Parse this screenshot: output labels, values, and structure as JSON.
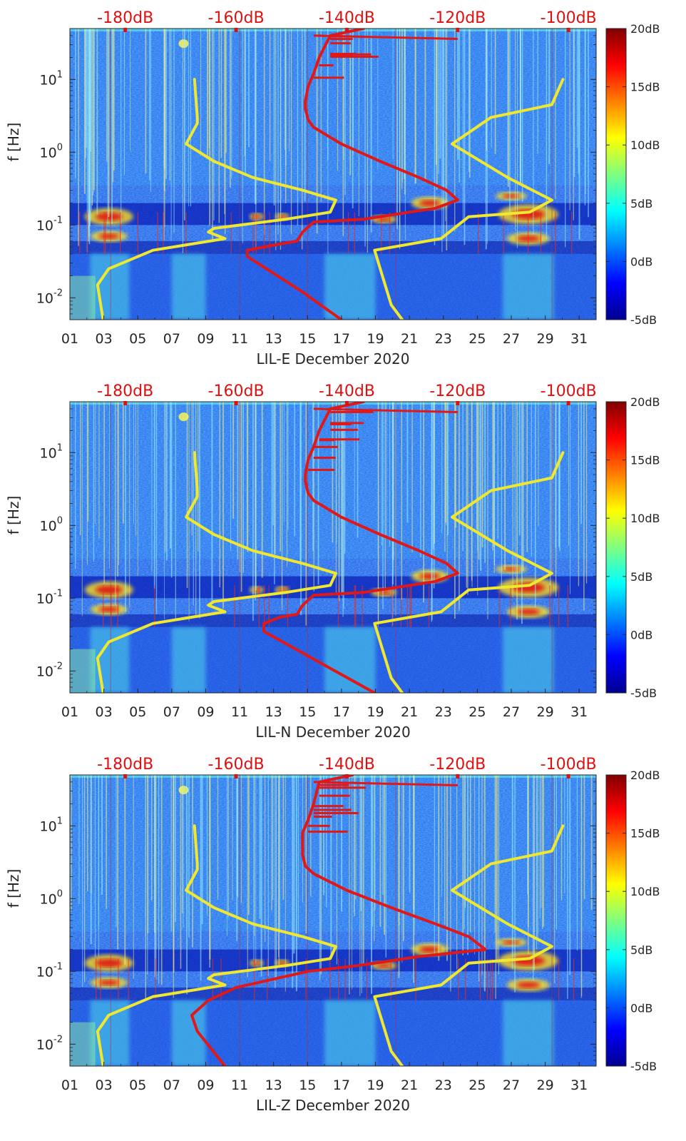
{
  "chart_data": [
    {
      "type": "heatmap",
      "xlabel": "LIL-E December 2020",
      "ylabel": "f [Hz]",
      "xticks": [
        "01",
        "03",
        "05",
        "07",
        "09",
        "11",
        "13",
        "15",
        "17",
        "19",
        "21",
        "23",
        "25",
        "27",
        "29",
        "31"
      ],
      "x_range_days": [
        1,
        32
      ],
      "yscale": "log",
      "ylim_hz": [
        0.005,
        50
      ],
      "yticks": [
        "10-2",
        "100",
        "10-1",
        "101"
      ],
      "top_axis_ticks": [
        "-180dB",
        "-160dB",
        "-140dB",
        "-120dB",
        "-100dB"
      ],
      "top_axis_values_db": [
        -180,
        -160,
        -140,
        -120,
        -100
      ],
      "colorbar": {
        "ticks": [
          "20dB",
          "15dB",
          "10dB",
          "5dB",
          "0dB",
          "-5dB"
        ],
        "values_db": [
          20,
          15,
          10,
          5,
          0,
          -5
        ],
        "range_db": [
          -5,
          20
        ]
      },
      "series": [
        {
          "color": "#f0e830",
          "points_db_hz": [
            [
              -167.5,
              10
            ],
            [
              -167,
              3
            ],
            [
              -167,
              2.5
            ],
            [
              -169,
              1.3
            ],
            [
              -164,
              0.75
            ],
            [
              -157,
              0.45
            ],
            [
              -148,
              0.3
            ],
            [
              -142,
              0.22
            ],
            [
              -143,
              0.15
            ],
            [
              -151,
              0.12
            ],
            [
              -164,
              0.09
            ],
            [
              -165,
              0.08
            ],
            [
              -162,
              0.065
            ],
            [
              -175,
              0.045
            ],
            [
              -183,
              0.025
            ],
            [
              -185,
              0.015
            ],
            [
              -184,
              0.005
            ]
          ]
        },
        {
          "color": "#f0e830",
          "points_db_hz": [
            [
              -101,
              10
            ],
            [
              -103,
              4.5
            ],
            [
              -114,
              3
            ],
            [
              -121,
              1.3
            ],
            [
              -111,
              0.45
            ],
            [
              -103,
              0.22
            ],
            [
              -107,
              0.15
            ],
            [
              -118,
              0.13
            ],
            [
              -123,
              0.065
            ],
            [
              -135,
              0.045
            ],
            [
              -132,
              0.008
            ],
            [
              -130,
              0.005
            ]
          ]
        },
        {
          "color": "#e01818",
          "points_db_hz": [
            [
              -137,
              50
            ],
            [
              -143,
              40
            ],
            [
              -145,
              20
            ],
            [
              -146,
              12
            ],
            [
              -147,
              8
            ],
            [
              -147.5,
              5
            ],
            [
              -147.5,
              4
            ],
            [
              -147,
              2.8
            ],
            [
              -146,
              2.2
            ],
            [
              -141,
              1.3
            ],
            [
              -134,
              0.75
            ],
            [
              -127,
              0.45
            ],
            [
              -122,
              0.3
            ],
            [
              -120,
              0.22
            ],
            [
              -124,
              0.17
            ],
            [
              -137,
              0.12
            ],
            [
              -146,
              0.11
            ],
            [
              -148,
              0.08
            ],
            [
              -149,
              0.06
            ],
            [
              -152,
              0.055
            ],
            [
              -158,
              0.045
            ],
            [
              -158,
              0.037
            ],
            [
              -148,
              0.012
            ],
            [
              -141,
              0.005
            ]
          ]
        }
      ]
    },
    {
      "type": "heatmap",
      "xlabel": "LIL-N December 2020",
      "ylabel": "f [Hz]",
      "xticks": [
        "01",
        "03",
        "05",
        "07",
        "09",
        "11",
        "13",
        "15",
        "17",
        "19",
        "21",
        "23",
        "25",
        "27",
        "29",
        "31"
      ],
      "x_range_days": [
        1,
        32
      ],
      "yscale": "log",
      "ylim_hz": [
        0.005,
        50
      ],
      "yticks": [
        "10-2",
        "100",
        "10-1",
        "101"
      ],
      "top_axis_ticks": [
        "-180dB",
        "-160dB",
        "-140dB",
        "-120dB",
        "-100dB"
      ],
      "top_axis_values_db": [
        -180,
        -160,
        -140,
        -120,
        -100
      ],
      "colorbar": {
        "ticks": [
          "20dB",
          "15dB",
          "10dB",
          "5dB",
          "0dB",
          "-5dB"
        ],
        "values_db": [
          20,
          15,
          10,
          5,
          0,
          -5
        ],
        "range_db": [
          -5,
          20
        ]
      },
      "series": [
        {
          "color": "#f0e830",
          "points_db_hz": [
            [
              -167.5,
              10
            ],
            [
              -167,
              3
            ],
            [
              -167,
              2.5
            ],
            [
              -169,
              1.3
            ],
            [
              -164,
              0.75
            ],
            [
              -157,
              0.45
            ],
            [
              -148,
              0.3
            ],
            [
              -142,
              0.22
            ],
            [
              -143,
              0.15
            ],
            [
              -151,
              0.12
            ],
            [
              -164,
              0.09
            ],
            [
              -165,
              0.08
            ],
            [
              -162,
              0.065
            ],
            [
              -175,
              0.045
            ],
            [
              -183,
              0.025
            ],
            [
              -185,
              0.015
            ],
            [
              -184,
              0.005
            ]
          ]
        },
        {
          "color": "#f0e830",
          "points_db_hz": [
            [
              -101,
              10
            ],
            [
              -103,
              4.5
            ],
            [
              -114,
              3
            ],
            [
              -121,
              1.3
            ],
            [
              -111,
              0.45
            ],
            [
              -103,
              0.22
            ],
            [
              -107,
              0.15
            ],
            [
              -118,
              0.13
            ],
            [
              -123,
              0.065
            ],
            [
              -135,
              0.045
            ],
            [
              -132,
              0.008
            ],
            [
              -130,
              0.005
            ]
          ]
        },
        {
          "color": "#e01818",
          "points_db_hz": [
            [
              -137,
              50
            ],
            [
              -143,
              40
            ],
            [
              -145,
              20
            ],
            [
              -146,
              12
            ],
            [
              -147,
              8
            ],
            [
              -147.5,
              5
            ],
            [
              -147.5,
              4
            ],
            [
              -147,
              2.8
            ],
            [
              -146,
              2.2
            ],
            [
              -141,
              1.3
            ],
            [
              -134,
              0.75
            ],
            [
              -127,
              0.45
            ],
            [
              -122,
              0.3
            ],
            [
              -120,
              0.22
            ],
            [
              -124,
              0.17
            ],
            [
              -137,
              0.12
            ],
            [
              -146,
              0.11
            ],
            [
              -148,
              0.08
            ],
            [
              -149,
              0.06
            ],
            [
              -152,
              0.055
            ],
            [
              -155,
              0.045
            ],
            [
              -155,
              0.035
            ],
            [
              -144,
              0.012
            ],
            [
              -135,
              0.005
            ]
          ]
        }
      ]
    },
    {
      "type": "heatmap",
      "xlabel": "LIL-Z December 2020",
      "ylabel": "f [Hz]",
      "xticks": [
        "01",
        "03",
        "05",
        "07",
        "09",
        "11",
        "13",
        "15",
        "17",
        "19",
        "21",
        "23",
        "25",
        "27",
        "29",
        "31"
      ],
      "x_range_days": [
        1,
        32
      ],
      "yscale": "log",
      "ylim_hz": [
        0.005,
        50
      ],
      "yticks": [
        "10-2",
        "100",
        "10-1",
        "101"
      ],
      "top_axis_ticks": [
        "-180dB",
        "-160dB",
        "-140dB",
        "-120dB",
        "-100dB"
      ],
      "top_axis_values_db": [
        -180,
        -160,
        -140,
        -120,
        -100
      ],
      "colorbar": {
        "ticks": [
          "20dB",
          "15dB",
          "10dB",
          "5dB",
          "0dB",
          "-5dB"
        ],
        "values_db": [
          20,
          15,
          10,
          5,
          0,
          -5
        ],
        "range_db": [
          -5,
          20
        ]
      },
      "series": [
        {
          "color": "#f0e830",
          "points_db_hz": [
            [
              -167.5,
              10
            ],
            [
              -167,
              3
            ],
            [
              -167,
              2.5
            ],
            [
              -169,
              1.3
            ],
            [
              -164,
              0.75
            ],
            [
              -157,
              0.45
            ],
            [
              -148,
              0.3
            ],
            [
              -142,
              0.22
            ],
            [
              -143,
              0.15
            ],
            [
              -151,
              0.12
            ],
            [
              -164,
              0.09
            ],
            [
              -165,
              0.08
            ],
            [
              -162,
              0.065
            ],
            [
              -175,
              0.045
            ],
            [
              -183,
              0.025
            ],
            [
              -185,
              0.015
            ],
            [
              -184,
              0.005
            ]
          ]
        },
        {
          "color": "#f0e830",
          "points_db_hz": [
            [
              -101,
              10
            ],
            [
              -103,
              4.5
            ],
            [
              -114,
              3
            ],
            [
              -121,
              1.3
            ],
            [
              -111,
              0.45
            ],
            [
              -103,
              0.22
            ],
            [
              -107,
              0.15
            ],
            [
              -118,
              0.13
            ],
            [
              -123,
              0.065
            ],
            [
              -135,
              0.045
            ],
            [
              -132,
              0.008
            ],
            [
              -130,
              0.005
            ]
          ]
        },
        {
          "color": "#e01818",
          "points_db_hz": [
            [
              -139,
              50
            ],
            [
              -145,
              40
            ],
            [
              -146,
              20
            ],
            [
              -147,
              12
            ],
            [
              -148,
              8
            ],
            [
              -148,
              5
            ],
            [
              -148,
              4
            ],
            [
              -147.5,
              2.8
            ],
            [
              -146,
              2.2
            ],
            [
              -140,
              1.3
            ],
            [
              -132,
              0.75
            ],
            [
              -124,
              0.45
            ],
            [
              -118,
              0.3
            ],
            [
              -115,
              0.2
            ],
            [
              -127,
              0.16
            ],
            [
              -138,
              0.12
            ],
            [
              -147,
              0.1
            ],
            [
              -160,
              0.06
            ],
            [
              -165,
              0.04
            ],
            [
              -168,
              0.025
            ],
            [
              -167,
              0.015
            ],
            [
              -162,
              0.005
            ]
          ]
        }
      ]
    }
  ]
}
